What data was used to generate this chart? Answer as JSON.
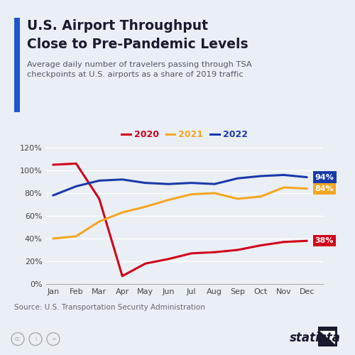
{
  "title_line1": "U.S. Airport Throughput",
  "title_line2": "Close to Pre-Pandemic Levels",
  "subtitle": "Average daily number of travelers passing through TSA\ncheckpoints at U.S. airports as a share of 2019 traffic",
  "months": [
    "Jan",
    "Feb",
    "Mar",
    "Apr",
    "May",
    "Jun",
    "Jul",
    "Aug",
    "Sep",
    "Oct",
    "Nov",
    "Dec"
  ],
  "series": {
    "2020": [
      105,
      106,
      75,
      7,
      18,
      22,
      27,
      28,
      30,
      34,
      37,
      38
    ],
    "2021": [
      40,
      42,
      55,
      63,
      68,
      74,
      79,
      80,
      75,
      77,
      85,
      84
    ],
    "2022": [
      78,
      86,
      91,
      92,
      89,
      88,
      89,
      88,
      93,
      95,
      96,
      94
    ]
  },
  "colors": {
    "2020": "#d0021b",
    "2021": "#f5a623",
    "2022": "#1a3aaa"
  },
  "end_labels": {
    "2020": "38%",
    "2021": "84%",
    "2022": "94%"
  },
  "label_bg_colors": {
    "2020": "#d0021b",
    "2021": "#f5a623",
    "2022": "#1a3aaa"
  },
  "ylim": [
    0,
    125
  ],
  "yticks": [
    0,
    20,
    40,
    60,
    80,
    100,
    120
  ],
  "ytick_labels": [
    "0%",
    "20%",
    "40%",
    "60%",
    "80%",
    "100%",
    "120%"
  ],
  "background_color": "#eaeff5",
  "plot_bg_color": "#eaeff5",
  "title_color": "#1a1a2e",
  "subtitle_color": "#555566",
  "accent_bar_color": "#2255cc",
  "source_text": "Source: U.S. Transportation Security Administration",
  "line_width": 2.2
}
